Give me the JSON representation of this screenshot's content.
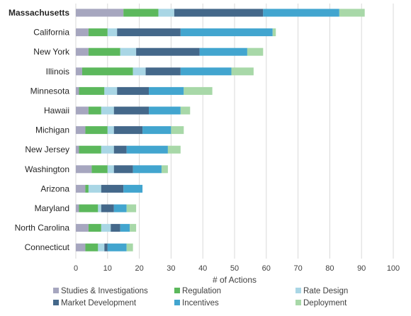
{
  "chart_data": {
    "type": "bar",
    "orientation": "horizontal",
    "stacked": true,
    "title": "",
    "xlabel": "# of Actions",
    "ylabel": "",
    "xlim": [
      0,
      100
    ],
    "xticks": [
      0,
      10,
      20,
      30,
      40,
      50,
      60,
      70,
      80,
      90,
      100
    ],
    "grid": "vertical",
    "legend_position": "bottom",
    "categories": [
      "Massachusetts",
      "California",
      "New York",
      "Illinois",
      "Minnesota",
      "Hawaii",
      "Michigan",
      "New Jersey",
      "Washington",
      "Arizona",
      "Maryland",
      "North Carolina",
      "Connecticut"
    ],
    "series": [
      {
        "name": "Studies & Investigations",
        "color": "#a6a6bf",
        "values": [
          15,
          4,
          4,
          2,
          1,
          4,
          3,
          1,
          5,
          3,
          1,
          4,
          3
        ]
      },
      {
        "name": "Regulation",
        "color": "#5cb85c",
        "values": [
          11,
          6,
          10,
          16,
          8,
          4,
          7,
          7,
          5,
          1,
          6,
          4,
          4
        ]
      },
      {
        "name": "Rate Design",
        "color": "#a9d6e5",
        "values": [
          5,
          3,
          5,
          4,
          4,
          4,
          2,
          4,
          2,
          4,
          1,
          3,
          2
        ]
      },
      {
        "name": "Market Development",
        "color": "#44688a",
        "values": [
          28,
          20,
          20,
          11,
          10,
          11,
          9,
          4,
          6,
          7,
          4,
          3,
          1
        ]
      },
      {
        "name": "Incentives",
        "color": "#42a5cf",
        "values": [
          24,
          29,
          15,
          16,
          11,
          10,
          9,
          13,
          9,
          6,
          4,
          3,
          6
        ]
      },
      {
        "name": "Deployment",
        "color": "#a8d8a8",
        "values": [
          8,
          1,
          5,
          7,
          9,
          3,
          4,
          4,
          2,
          0,
          3,
          2,
          2
        ]
      }
    ]
  }
}
